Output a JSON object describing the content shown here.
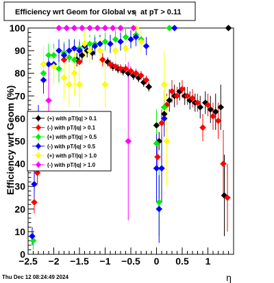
{
  "chart_data": {
    "type": "scatter",
    "title_parts": {
      "before": "Efficiency wrt Geom for Global vs",
      "symbol": "η",
      "after": "at pT > 0.11"
    },
    "ylabel": "Efficiency wrt Geom (%)",
    "xlabel": "η",
    "footer": "Thu Dec 12 08:24:49 2024",
    "xlim": [
      -2.5,
      1.5
    ],
    "ylim": [
      0,
      100
    ],
    "xticks": [
      {
        "v": -2.5,
        "label": "−2.5"
      },
      {
        "v": -2,
        "label": "−2"
      },
      {
        "v": -1.5,
        "label": "−1.5"
      },
      {
        "v": -1,
        "label": "−1"
      },
      {
        "v": -0.5,
        "label": "−0.5"
      },
      {
        "v": 0,
        "label": "0"
      },
      {
        "v": 0.5,
        "label": "0.5"
      },
      {
        "v": 1,
        "label": "1"
      }
    ],
    "yticks": [
      0,
      10,
      20,
      30,
      40,
      50,
      60,
      70,
      80,
      90,
      100
    ],
    "legend_position": "left-middle",
    "series": [
      {
        "name": "(+) with pT/|q| > 0.1",
        "color": "#000000",
        "points": [
          [
            -2.42,
            8,
            2
          ],
          [
            -1.55,
            86,
            3
          ],
          [
            -1.45,
            88,
            3
          ],
          [
            -1.35,
            90,
            3
          ],
          [
            -1.25,
            89,
            3
          ],
          [
            -0.95,
            85,
            2
          ],
          [
            -0.85,
            83,
            2
          ],
          [
            -0.75,
            82,
            2
          ],
          [
            -0.65,
            81,
            2
          ],
          [
            -0.55,
            80,
            2
          ],
          [
            -0.45,
            79,
            2
          ],
          [
            -0.35,
            78,
            2
          ],
          [
            -0.25,
            76,
            2
          ],
          [
            -0.15,
            74,
            2
          ],
          [
            0.0,
            57,
            3
          ],
          [
            0.05,
            50,
            4
          ],
          [
            0.15,
            62,
            5
          ],
          [
            0.25,
            68,
            5
          ],
          [
            0.35,
            70,
            5
          ],
          [
            0.45,
            72,
            4
          ],
          [
            0.55,
            70,
            4
          ],
          [
            0.65,
            68,
            4
          ],
          [
            0.75,
            67,
            4
          ],
          [
            0.85,
            65,
            5
          ],
          [
            0.95,
            67,
            5
          ],
          [
            1.05,
            64,
            6
          ],
          [
            1.15,
            63,
            8
          ],
          [
            1.25,
            65,
            10
          ],
          [
            1.32,
            26,
            18
          ],
          [
            1.4,
            100,
            0
          ]
        ]
      },
      {
        "name": "(-) with pT/|q| > 0.1",
        "color": "#ff0000",
        "points": [
          [
            -2.38,
            23,
            5
          ],
          [
            -2.32,
            36,
            5
          ],
          [
            -1.8,
            86,
            3
          ],
          [
            -1.5,
            85,
            3
          ],
          [
            -1.05,
            86,
            3
          ],
          [
            -0.9,
            84,
            2
          ],
          [
            -0.8,
            83,
            2
          ],
          [
            -0.7,
            82,
            2
          ],
          [
            -0.6,
            82,
            2
          ],
          [
            -0.5,
            81,
            2
          ],
          [
            -0.4,
            80,
            2
          ],
          [
            -0.3,
            79,
            2
          ],
          [
            -0.2,
            77,
            2
          ],
          [
            0.02,
            43,
            6
          ],
          [
            0.1,
            58,
            6
          ],
          [
            0.2,
            66,
            5
          ],
          [
            0.3,
            72,
            5
          ],
          [
            0.4,
            70,
            4
          ],
          [
            0.5,
            73,
            4
          ],
          [
            0.6,
            70,
            4
          ],
          [
            0.7,
            69,
            4
          ],
          [
            0.8,
            67,
            4
          ],
          [
            0.9,
            56,
            6
          ],
          [
            1.0,
            66,
            5
          ],
          [
            1.1,
            61,
            6
          ],
          [
            1.2,
            59,
            8
          ],
          [
            1.3,
            40,
            15
          ],
          [
            1.38,
            25,
            15
          ]
        ]
      },
      {
        "name": "(+) with pT/|q| > 0.5",
        "color": "#00ee00",
        "points": [
          [
            -2.4,
            6,
            4
          ],
          [
            -2.2,
            80,
            6
          ],
          [
            -2.1,
            88,
            5
          ],
          [
            -2.0,
            88,
            5
          ],
          [
            -1.9,
            82,
            6
          ],
          [
            -1.8,
            89,
            5
          ],
          [
            -1.7,
            87,
            5
          ],
          [
            -1.6,
            86,
            5
          ],
          [
            -1.5,
            91,
            4
          ],
          [
            -1.4,
            92,
            4
          ],
          [
            -1.3,
            93,
            4
          ],
          [
            -1.2,
            93,
            4
          ],
          [
            -1.0,
            94,
            4
          ],
          [
            -0.8,
            95,
            4
          ],
          [
            -0.6,
            96,
            4
          ],
          [
            -0.4,
            97,
            3
          ],
          [
            -0.3,
            95,
            4
          ],
          [
            0.0,
            49,
            15
          ],
          [
            0.05,
            23,
            15
          ],
          [
            0.15,
            65,
            8
          ],
          [
            0.25,
            100,
            0
          ]
        ]
      },
      {
        "name": "(-) with pT/|q| > 0.5",
        "color": "#0000ff",
        "points": [
          [
            -2.42,
            8,
            4
          ],
          [
            -2.38,
            31,
            6
          ],
          [
            -2.3,
            60,
            6
          ],
          [
            -2.2,
            77,
            6
          ],
          [
            -2.1,
            84,
            5
          ],
          [
            -2.0,
            84,
            5
          ],
          [
            -1.9,
            90,
            5
          ],
          [
            -1.8,
            88,
            5
          ],
          [
            -1.7,
            90,
            5
          ],
          [
            -1.6,
            91,
            4
          ],
          [
            -1.5,
            90,
            4
          ],
          [
            -1.4,
            92,
            4
          ],
          [
            -1.3,
            90,
            4
          ],
          [
            -1.2,
            92,
            4
          ],
          [
            -1.1,
            93,
            4
          ],
          [
            -0.9,
            93,
            4
          ],
          [
            -0.7,
            94,
            4
          ],
          [
            -0.5,
            95,
            4
          ],
          [
            -0.4,
            96,
            4
          ],
          [
            -0.2,
            92,
            4
          ],
          [
            0.0,
            38,
            15
          ],
          [
            0.05,
            20,
            15
          ],
          [
            0.1,
            38,
            15
          ],
          [
            0.15,
            60,
            8
          ],
          [
            0.35,
            100,
            0
          ]
        ]
      },
      {
        "name": "(+) with pT/|q| > 1.0",
        "color": "#ffff00",
        "points": [
          [
            -2.2,
            84,
            8
          ],
          [
            -2.0,
            83,
            8
          ],
          [
            -1.8,
            78,
            10
          ],
          [
            -1.7,
            75,
            10
          ],
          [
            -1.6,
            80,
            10
          ],
          [
            -1.5,
            75,
            10
          ],
          [
            -1.4,
            93,
            6
          ],
          [
            -1.3,
            90,
            6
          ],
          [
            -1.1,
            90,
            6
          ],
          [
            -1.0,
            75,
            10
          ],
          [
            -0.8,
            90,
            6
          ],
          [
            -0.6,
            91,
            6
          ],
          [
            -0.4,
            100,
            0
          ],
          [
            -0.3,
            94,
            5
          ],
          [
            0.15,
            75,
            15
          ],
          [
            0.2,
            50,
            20
          ]
        ]
      },
      {
        "name": "(-) with pT/|q| > 1.0",
        "color": "#ff00ff",
        "points": [
          [
            -2.1,
            68,
            15
          ],
          [
            -1.9,
            100,
            0
          ],
          [
            -1.75,
            100,
            0
          ],
          [
            -1.6,
            100,
            0
          ],
          [
            -1.45,
            100,
            0
          ],
          [
            -1.3,
            100,
            0
          ],
          [
            -1.15,
            100,
            0
          ],
          [
            -1.0,
            100,
            0
          ],
          [
            -0.85,
            100,
            0
          ],
          [
            -0.7,
            100,
            0
          ],
          [
            -0.55,
            50,
            35
          ],
          [
            -0.45,
            100,
            0
          ]
        ]
      }
    ]
  }
}
